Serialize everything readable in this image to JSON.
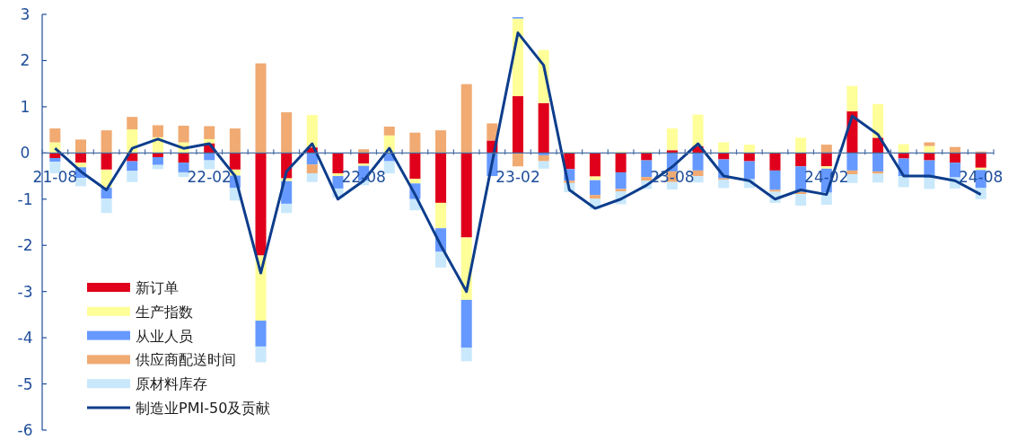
{
  "chart_data": {
    "type": "bar",
    "stacked": true,
    "categories": [
      "21-08",
      null,
      null,
      null,
      null,
      null,
      "22-02",
      null,
      null,
      null,
      null,
      null,
      "22-08",
      null,
      null,
      null,
      null,
      null,
      "23-02",
      null,
      null,
      null,
      null,
      null,
      "23-08",
      null,
      null,
      null,
      null,
      null,
      "24-02",
      null,
      null,
      null,
      null,
      null,
      "24-08"
    ],
    "ylim": [
      -6,
      3
    ],
    "yticks": [
      -6,
      -5,
      -4,
      -3,
      -2,
      -1,
      0,
      1,
      2,
      3
    ],
    "grid": false,
    "legend": "bottom left",
    "series": [
      {
        "name": "新订单",
        "color": "#e0001b",
        "values": [
          -0.11,
          -0.21,
          -0.36,
          -0.18,
          -0.09,
          -0.21,
          0.21,
          -0.36,
          -2.22,
          -0.55,
          0.12,
          -0.44,
          -0.23,
          null,
          -0.56,
          -1.08,
          -1.83,
          0.27,
          1.23,
          1.08,
          -0.35,
          -0.51,
          -0.42,
          -0.16,
          0.06,
          0.15,
          -0.14,
          -0.18,
          -0.38,
          -0.29,
          -0.29,
          0.9,
          0.33,
          -0.12,
          -0.16,
          -0.21,
          -0.32
        ]
      },
      {
        "name": "生产指数",
        "color": "#ffff99",
        "values": [
          0.23,
          -0.1,
          -0.39,
          0.51,
          0.34,
          0.23,
          0.09,
          -0.13,
          -1.41,
          -0.06,
          0.7,
          -0.06,
          -0.05,
          0.38,
          -0.1,
          -0.55,
          -1.35,
          0,
          1.68,
          1.15,
          0.02,
          -0.08,
          0.03,
          0.03,
          0.47,
          0.68,
          0.23,
          0.18,
          0.02,
          0.33,
          -0.05,
          0.55,
          0.73,
          0.19,
          0.15,
          0,
          -0.05
        ]
      },
      {
        "name": "从业人员",
        "color": "#6699ff",
        "values": [
          -0.08,
          -0.23,
          -0.24,
          -0.21,
          -0.17,
          -0.21,
          -0.16,
          -0.27,
          -0.56,
          -0.49,
          -0.25,
          -0.27,
          -0.32,
          -0.18,
          -0.34,
          -0.51,
          -1.04,
          -0.5,
          0.03,
          -0.05,
          -0.25,
          -0.32,
          -0.36,
          -0.36,
          -0.4,
          -0.38,
          -0.41,
          -0.39,
          -0.42,
          -0.55,
          -0.52,
          -0.38,
          -0.4,
          -0.38,
          -0.38,
          -0.32,
          -0.39
        ]
      },
      {
        "name": "供应商配送时间",
        "color": "#f0aa72",
        "values": [
          0.3,
          0.29,
          0.49,
          0.27,
          0.26,
          0.36,
          0.28,
          0.53,
          1.94,
          0.88,
          -0.19,
          null,
          0.08,
          0.19,
          0.44,
          0.49,
          1.49,
          0.37,
          -0.29,
          -0.13,
          -0.05,
          -0.08,
          -0.05,
          -0.08,
          -0.23,
          -0.12,
          -0.03,
          null,
          -0.04,
          -0.05,
          0.18,
          -0.08,
          -0.05,
          0,
          0.08,
          0.13,
          0.03
        ]
      },
      {
        "name": "原材料库存",
        "color": "#c9e8fb",
        "values": [
          -0.25,
          -0.18,
          -0.31,
          -0.24,
          -0.09,
          -0.1,
          -0.19,
          -0.27,
          -0.34,
          -0.2,
          -0.19,
          -0.2,
          -0.1,
          -0.26,
          -0.24,
          -0.34,
          -0.29,
          null,
          0,
          -0.16,
          -0.2,
          -0.23,
          -0.28,
          -0.18,
          -0.16,
          -0.14,
          -0.18,
          -0.19,
          -0.24,
          -0.25,
          -0.26,
          -0.19,
          -0.19,
          -0.24,
          -0.24,
          -0.24,
          -0.24
        ]
      },
      {
        "name": "制造业PMI-50及贡献",
        "type": "line",
        "color": "#0d3d8c",
        "values": [
          0.1,
          -0.4,
          -0.8,
          0.1,
          0.3,
          0.1,
          0.2,
          -0.5,
          -2.6,
          -0.4,
          0.2,
          -1.0,
          -0.6,
          0.1,
          -0.9,
          -2.0,
          -3.0,
          -0.2,
          2.6,
          1.9,
          -0.8,
          -1.2,
          -1.0,
          -0.7,
          -0.3,
          0.2,
          -0.5,
          -0.6,
          -1.0,
          -0.8,
          -0.9,
          0.8,
          0.4,
          -0.5,
          -0.5,
          -0.6,
          -0.9
        ]
      }
    ]
  }
}
